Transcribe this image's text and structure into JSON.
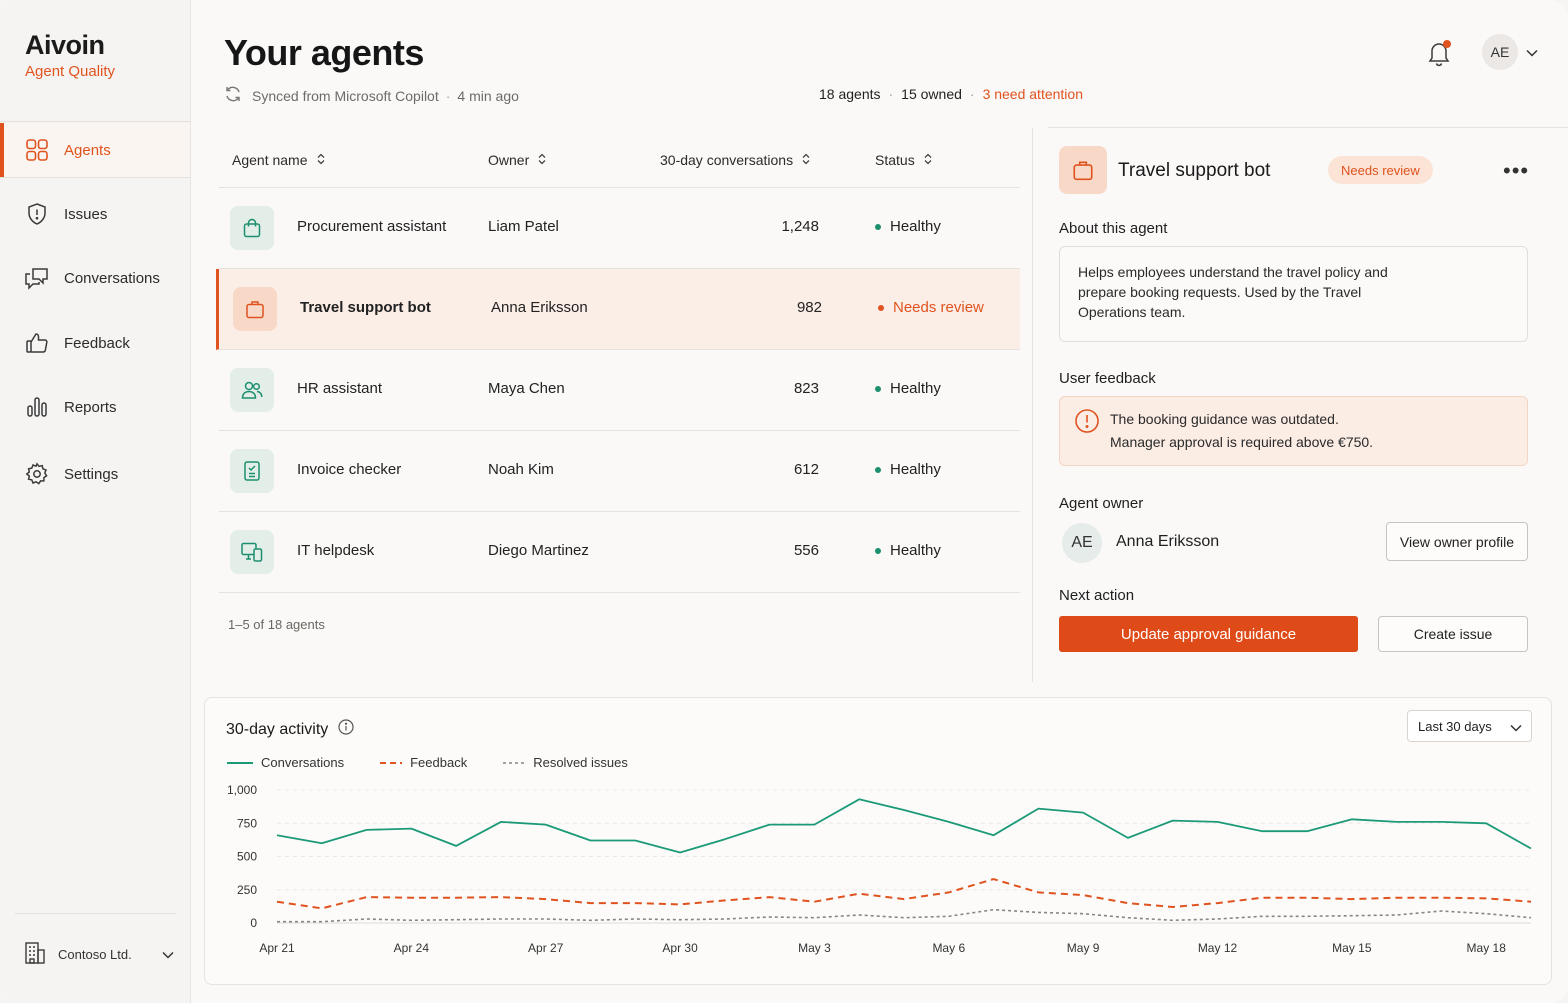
{
  "brand": {
    "name": "Aivoin",
    "subtitle": "Agent Quality"
  },
  "sidebar": {
    "items": [
      {
        "label": "Agents",
        "icon": "grid-icon",
        "active": true
      },
      {
        "label": "Issues",
        "icon": "shield-alert-icon"
      },
      {
        "label": "Conversations",
        "icon": "chat-bubbles-icon"
      },
      {
        "label": "Feedback",
        "icon": "thumbs-up-icon"
      },
      {
        "label": "Reports",
        "icon": "bar-chart-icon"
      },
      {
        "label": "Settings",
        "icon": "gear-icon"
      }
    ],
    "org": "Contoso Ltd."
  },
  "header": {
    "title": "Your agents",
    "sync_text": "Synced from Microsoft Copilot",
    "sync_time": "4 min ago",
    "stats": {
      "agents": "18 agents",
      "owned": "15 owned",
      "attention": "3 need attention"
    },
    "user_initials": "AE"
  },
  "table": {
    "columns": [
      "Agent name",
      "Owner",
      "30-day conversations",
      "Status"
    ],
    "rows": [
      {
        "name": "Procurement assistant",
        "owner": "Liam Patel",
        "conversations": "1,248",
        "status": "Healthy",
        "icon": "shopping-bag-icon"
      },
      {
        "name": "Travel support bot",
        "owner": "Anna Eriksson",
        "conversations": "982",
        "status": "Needs review",
        "icon": "briefcase-icon",
        "selected": true
      },
      {
        "name": "HR assistant",
        "owner": "Maya Chen",
        "conversations": "823",
        "status": "Healthy",
        "icon": "users-icon"
      },
      {
        "name": "Invoice checker",
        "owner": "Noah Kim",
        "conversations": "612",
        "status": "Healthy",
        "icon": "receipt-icon"
      },
      {
        "name": "IT helpdesk",
        "owner": "Diego Martinez",
        "conversations": "556",
        "status": "Healthy",
        "icon": "devices-icon"
      }
    ],
    "pagination": "1–5 of 18 agents"
  },
  "detail": {
    "title": "Travel support bot",
    "badge": "Needs review",
    "about_label": "About this agent",
    "about_text": "Helps employees understand the travel policy and prepare booking requests. Used by the Travel Operations team.",
    "feedback_label": "User feedback",
    "feedback_line1": "The booking guidance was outdated.",
    "feedback_line2": "Manager approval is required above €750.",
    "owner_label": "Agent owner",
    "owner_initials": "AE",
    "owner_name": "Anna Eriksson",
    "view_owner": "View owner profile",
    "next_label": "Next action",
    "primary_action": "Update approval guidance",
    "secondary_action": "Create issue"
  },
  "activity": {
    "title": "30-day activity",
    "range": "Last 30 days"
  },
  "colors": {
    "accent": "#e0531f",
    "healthy": "#1c8f6e",
    "conversations_line": "#1c9a78",
    "feedback_line": "#e0531f",
    "resolved_line": "#8a8580"
  },
  "chart_data": {
    "type": "line",
    "x": [
      "Apr 21",
      "Apr 22",
      "Apr 23",
      "Apr 24",
      "Apr 25",
      "Apr 26",
      "Apr 27",
      "Apr 28",
      "Apr 29",
      "Apr 30",
      "May 1",
      "May 2",
      "May 3",
      "May 4",
      "May 5",
      "May 6",
      "May 7",
      "May 8",
      "May 9",
      "May 10",
      "May 11",
      "May 12",
      "May 13",
      "May 14",
      "May 15",
      "May 16",
      "May 17",
      "May 18",
      "May 19"
    ],
    "x_tick_labels": [
      "Apr 21",
      "Apr 24",
      "Apr 27",
      "Apr 30",
      "May 3",
      "May 6",
      "May 9",
      "May 12",
      "May 15",
      "May 18"
    ],
    "y_ticks": [
      "0",
      "250",
      "500",
      "750",
      "1,000"
    ],
    "ylim": [
      0,
      1000
    ],
    "series": [
      {
        "name": "Conversations",
        "values": [
          660,
          600,
          700,
          710,
          580,
          760,
          740,
          620,
          620,
          530,
          630,
          740,
          740,
          930,
          850,
          760,
          660,
          860,
          830,
          640,
          770,
          760,
          690,
          690,
          780,
          760,
          760,
          750,
          560
        ]
      },
      {
        "name": "Feedback",
        "values": [
          160,
          110,
          195,
          190,
          190,
          195,
          180,
          150,
          150,
          140,
          170,
          195,
          160,
          220,
          180,
          230,
          330,
          230,
          210,
          150,
          120,
          150,
          190,
          190,
          180,
          190,
          190,
          185,
          160
        ]
      },
      {
        "name": "Resolved issues",
        "values": [
          10,
          10,
          30,
          20,
          25,
          30,
          30,
          20,
          30,
          25,
          30,
          45,
          40,
          60,
          40,
          50,
          100,
          80,
          70,
          40,
          20,
          30,
          50,
          50,
          55,
          60,
          90,
          70,
          40
        ]
      }
    ],
    "grid": true,
    "legend": "top-left"
  }
}
